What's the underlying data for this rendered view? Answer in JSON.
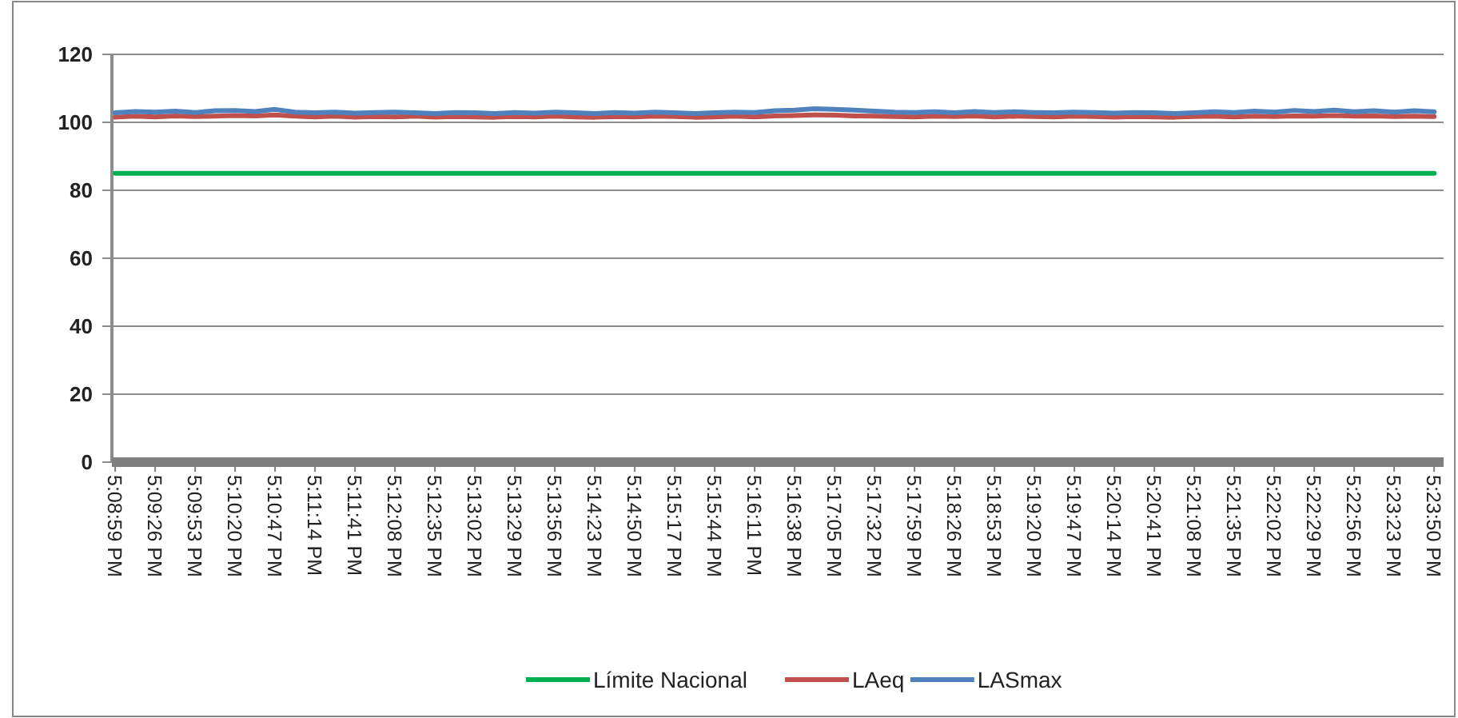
{
  "chart_data": {
    "type": "line",
    "x": [
      17.14972,
      17.15347,
      17.15722,
      17.16097,
      17.16472,
      17.16847,
      17.17222,
      17.17597,
      17.17972,
      17.18347,
      17.18722,
      17.19097,
      17.19472,
      17.19847,
      17.20222,
      17.20597,
      17.20972,
      17.21347,
      17.21722,
      17.22097,
      17.22472,
      17.22847,
      17.23222,
      17.23597,
      17.23972,
      17.24347,
      17.24722,
      17.25097,
      17.25472,
      17.25847,
      17.26222,
      17.26597,
      17.26972,
      17.27347,
      17.27722,
      17.28097,
      17.28472,
      17.28847,
      17.29222,
      17.29597,
      17.29972,
      17.30347,
      17.30722,
      17.31097,
      17.31472,
      17.31847,
      17.32222,
      17.32597,
      17.32972,
      17.33347,
      17.33722,
      17.34097,
      17.34472,
      17.34847,
      17.35222,
      17.35597,
      17.35972,
      17.36347,
      17.36722,
      17.37097,
      17.37472,
      17.37847,
      17.38222,
      17.38597,
      17.38972,
      17.39347,
      17.39722
    ],
    "series": [
      {
        "name": "Límite Nacional",
        "color": "#00b050",
        "values": [
          85,
          85,
          85,
          85,
          85,
          85,
          85,
          85,
          85,
          85,
          85,
          85,
          85,
          85,
          85,
          85,
          85,
          85,
          85,
          85,
          85,
          85,
          85,
          85,
          85,
          85,
          85,
          85,
          85,
          85,
          85,
          85,
          85,
          85,
          85,
          85,
          85,
          85,
          85,
          85,
          85,
          85,
          85,
          85,
          85,
          85,
          85,
          85,
          85,
          85,
          85,
          85,
          85,
          85,
          85,
          85,
          85,
          85,
          85,
          85,
          85,
          85,
          85,
          85,
          85,
          85,
          85
        ]
      },
      {
        "name": "LAeq",
        "color": "#c0504d",
        "values": [
          101.5,
          101.8,
          101.6,
          101.9,
          101.7,
          101.8,
          102,
          101.9,
          102.2,
          101.8,
          101.6,
          101.8,
          101.5,
          101.7,
          101.6,
          101.8,
          101.5,
          101.7,
          101.6,
          101.5,
          101.7,
          101.6,
          101.8,
          101.6,
          101.5,
          101.7,
          101.6,
          101.8,
          101.7,
          101.5,
          101.6,
          101.8,
          101.6,
          101.9,
          102,
          102.2,
          102.1,
          101.9,
          101.8,
          101.7,
          101.6,
          101.8,
          101.7,
          101.9,
          101.6,
          101.8,
          101.7,
          101.6,
          101.8,
          101.7,
          101.5,
          101.7,
          101.6,
          101.5,
          101.7,
          101.8,
          101.6,
          101.8,
          101.7,
          101.9,
          101.8,
          102,
          101.8,
          101.9,
          101.7,
          101.8,
          101.7
        ]
      },
      {
        "name": "LASmax",
        "color": "#4f81bd",
        "values": [
          102.8,
          103.2,
          103,
          103.3,
          102.9,
          103.4,
          103.5,
          103.2,
          103.8,
          103,
          102.8,
          103,
          102.7,
          102.9,
          103,
          102.8,
          102.6,
          102.9,
          102.8,
          102.6,
          102.9,
          102.7,
          103,
          102.8,
          102.6,
          102.9,
          102.7,
          103,
          102.8,
          102.6,
          102.8,
          103,
          102.9,
          103.4,
          103.6,
          104,
          103.8,
          103.6,
          103.3,
          103,
          102.9,
          103.1,
          102.8,
          103.2,
          102.9,
          103.1,
          102.9,
          102.8,
          103,
          102.9,
          102.7,
          102.9,
          102.8,
          102.6,
          102.8,
          103.1,
          102.9,
          103.3,
          103,
          103.5,
          103.2,
          103.6,
          103.1,
          103.4,
          103,
          103.4,
          103.1
        ]
      }
    ],
    "xlim": [
      17.1491,
      17.399
    ],
    "xticks": [
      {
        "value": 17.14972,
        "label": "5:08:59 PM"
      },
      {
        "value": 17.15722,
        "label": "5:09:26 PM"
      },
      {
        "value": 17.16472,
        "label": "5:09:53 PM"
      },
      {
        "value": 17.17222,
        "label": "5:10:20 PM"
      },
      {
        "value": 17.17972,
        "label": "5:10:47 PM"
      },
      {
        "value": 17.18722,
        "label": "5:11:14 PM"
      },
      {
        "value": 17.19472,
        "label": "5:11:41 PM"
      },
      {
        "value": 17.20222,
        "label": "5:12:08 PM"
      },
      {
        "value": 17.20972,
        "label": "5:12:35 PM"
      },
      {
        "value": 17.21722,
        "label": "5:13:02 PM"
      },
      {
        "value": 17.22472,
        "label": "5:13:29 PM"
      },
      {
        "value": 17.23222,
        "label": "5:13:56 PM"
      },
      {
        "value": 17.23972,
        "label": "5:14:23 PM"
      },
      {
        "value": 17.24722,
        "label": "5:14:50 PM"
      },
      {
        "value": 17.25472,
        "label": "5:15:17 PM"
      },
      {
        "value": 17.26222,
        "label": "5:15:44 PM"
      },
      {
        "value": 17.26972,
        "label": "5:16:11 PM"
      },
      {
        "value": 17.27722,
        "label": "5:16:38 PM"
      },
      {
        "value": 17.28472,
        "label": "5:17:05 PM"
      },
      {
        "value": 17.29222,
        "label": "5:17:32 PM"
      },
      {
        "value": 17.29972,
        "label": "5:17:59 PM"
      },
      {
        "value": 17.30722,
        "label": "5:18:26 PM"
      },
      {
        "value": 17.31472,
        "label": "5:18:53 PM"
      },
      {
        "value": 17.32222,
        "label": "5:19:20 PM"
      },
      {
        "value": 17.32972,
        "label": "5:19:47 PM"
      },
      {
        "value": 17.33722,
        "label": "5:20:14 PM"
      },
      {
        "value": 17.34472,
        "label": "5:20:41 PM"
      },
      {
        "value": 17.35222,
        "label": "5:21:08 PM"
      },
      {
        "value": 17.35972,
        "label": "5:21:35 PM"
      },
      {
        "value": 17.36722,
        "label": "5:22:02 PM"
      },
      {
        "value": 17.37472,
        "label": "5:22:29 PM"
      },
      {
        "value": 17.38222,
        "label": "5:22:56 PM"
      },
      {
        "value": 17.38972,
        "label": "5:23:23 PM"
      },
      {
        "value": 17.39722,
        "label": "5:23:50 PM"
      }
    ],
    "ylim": [
      0,
      120
    ],
    "yticks": [
      0,
      20,
      40,
      60,
      80,
      100,
      120
    ],
    "grid": "y",
    "legend": "bottom",
    "marker": "none",
    "line_style": "solid"
  }
}
